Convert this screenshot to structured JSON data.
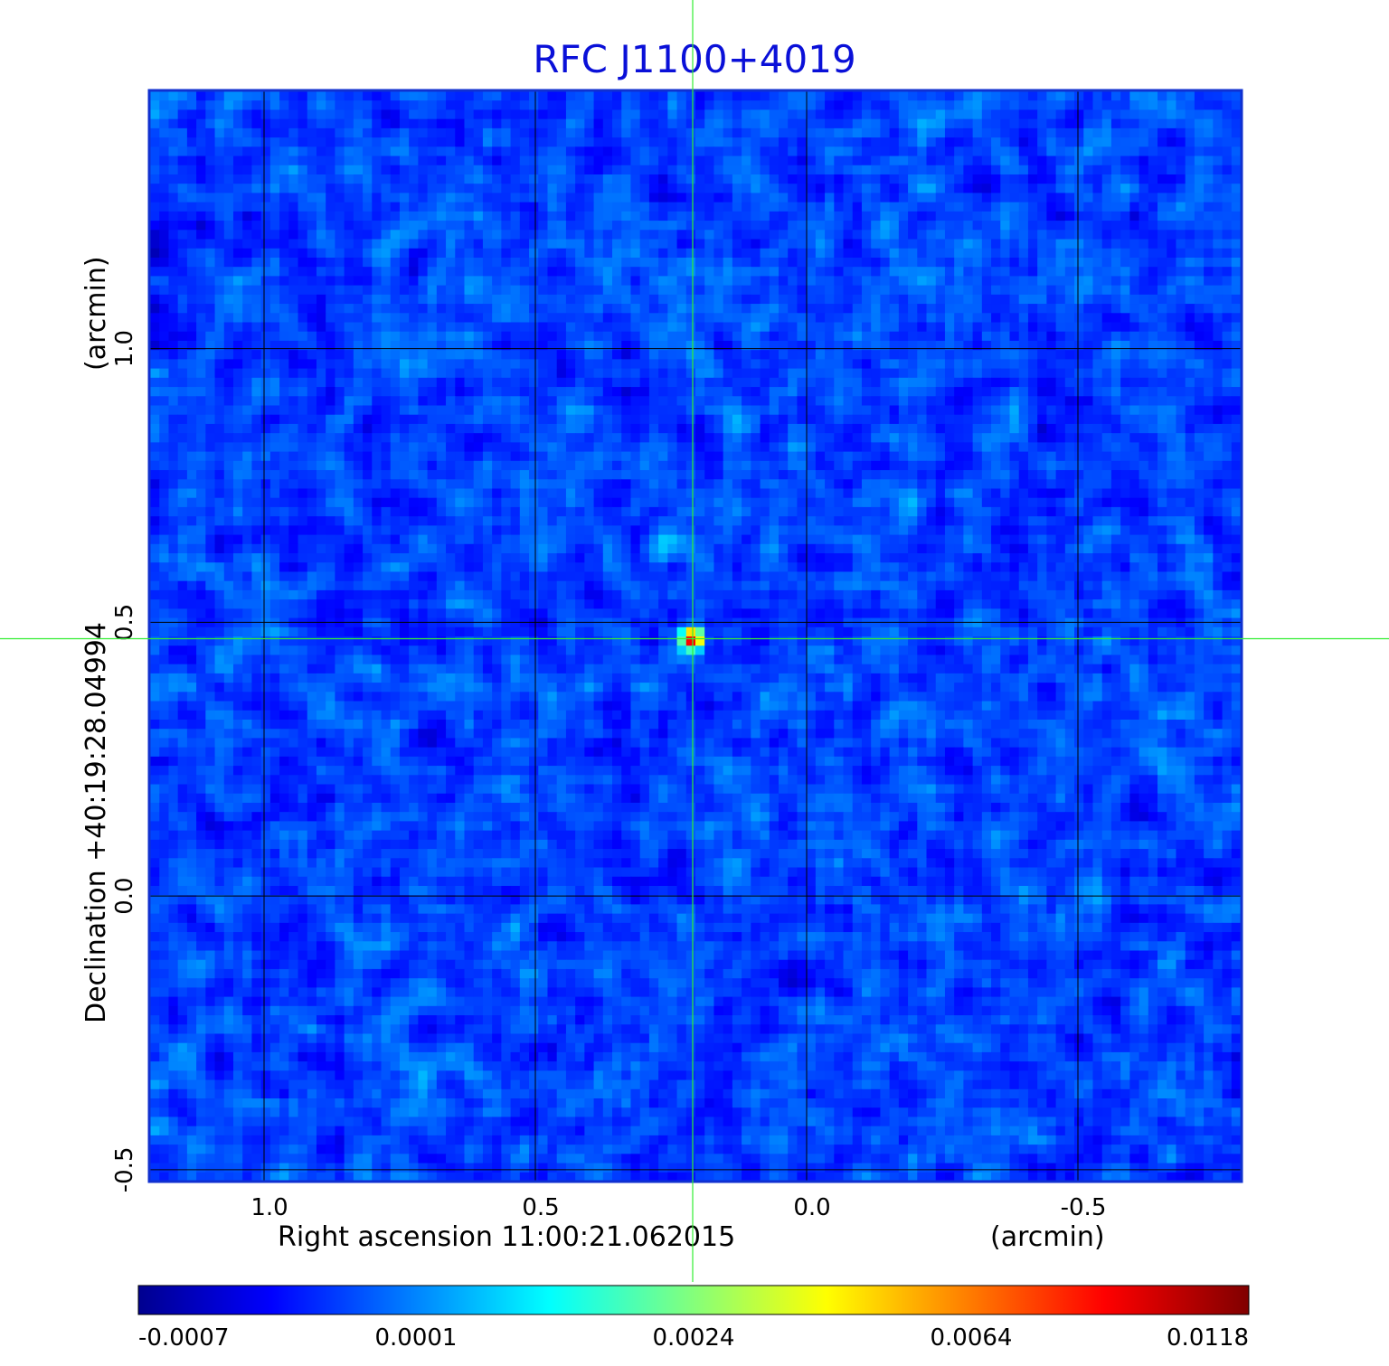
{
  "chart_data": {
    "type": "heatmap",
    "title": "RFC J1100+4019",
    "xlabel": "Right ascension  11:00:21.062015",
    "xlabel_unit": "(arcmin)",
    "ylabel": "Declination  +40:19:28.04994",
    "ylabel_unit": "(arcmin)",
    "x_ticks": [
      "1.0",
      "0.5",
      "0.0",
      "-0.5"
    ],
    "y_ticks": [
      "-0.5",
      "0.0",
      "0.5",
      "1.0"
    ],
    "xlim": [
      1.21,
      -0.8
    ],
    "ylim": [
      -0.52,
      1.47
    ],
    "grid": true,
    "crosshair": {
      "x": 0.21,
      "y": 0.47
    },
    "source_peak": {
      "x": 0.21,
      "y": 0.47,
      "value": 0.0118
    },
    "colorbar": {
      "tick_labels": [
        "-0.0007",
        "0.0001",
        "0.0024",
        "0.0064",
        "0.0118"
      ],
      "colormap": [
        "#00008f",
        "#0000ff",
        "#00ffff",
        "#ffff00",
        "#ff0000",
        "#800000"
      ]
    },
    "colors": {
      "title": "#0a10d8",
      "frame": "#1030d0",
      "crosshair": "#33ee33",
      "grid": "#000000"
    }
  }
}
